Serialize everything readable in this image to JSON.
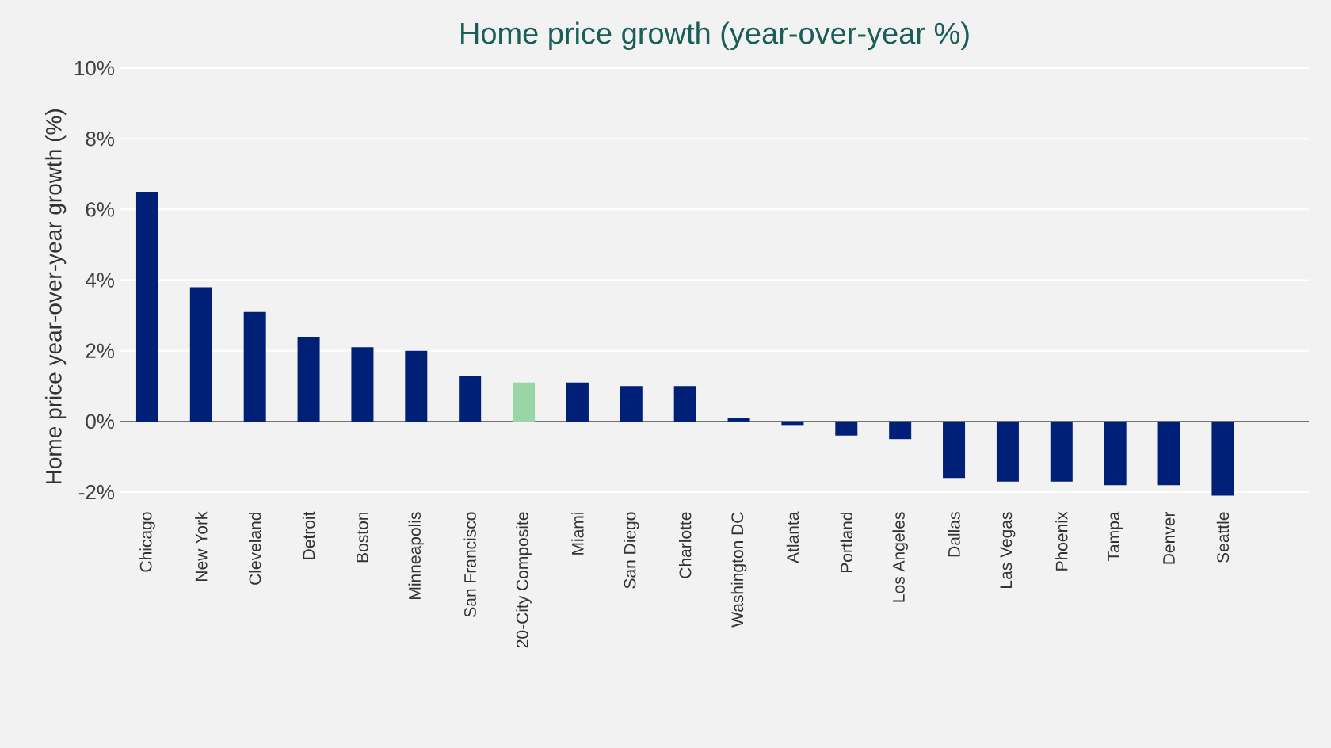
{
  "chart_data": {
    "type": "bar",
    "title": "Home price growth (year-over-year %)",
    "ylabel": "Home price year-over-year growth  (%)",
    "categories": [
      "Chicago",
      "New York",
      "Cleveland",
      "Detroit",
      "Boston",
      "Minneapolis",
      "San Francisco",
      "20-City Composite",
      "Miami",
      "San Diego",
      "Charlotte",
      "Washington DC",
      "Atlanta",
      "Portland",
      "Los Angeles",
      "Dallas",
      "Las Vegas",
      "Phoenix",
      "Tampa",
      "Denver",
      "Seattle"
    ],
    "values": [
      6.5,
      3.8,
      3.1,
      2.4,
      2.1,
      2.0,
      1.3,
      1.1,
      1.1,
      1.0,
      1.0,
      0.1,
      -0.1,
      -0.4,
      -0.5,
      -1.6,
      -1.7,
      -1.7,
      -1.8,
      -1.8,
      -2.1
    ],
    "colors": [
      "#001f77",
      "#001f77",
      "#001f77",
      "#001f77",
      "#001f77",
      "#001f77",
      "#001f77",
      "#99d5a6",
      "#001f77",
      "#001f77",
      "#001f77",
      "#001f77",
      "#001f77",
      "#001f77",
      "#001f77",
      "#001f77",
      "#001f77",
      "#001f77",
      "#001f77",
      "#001f77",
      "#001f77"
    ],
    "ylim": [
      -2.2,
      10
    ],
    "yticks": [
      {
        "value": -2,
        "label": "-2%"
      },
      {
        "value": 0,
        "label": "0%"
      },
      {
        "value": 2,
        "label": "2%"
      },
      {
        "value": 4,
        "label": "4%"
      },
      {
        "value": 6,
        "label": "6%"
      },
      {
        "value": 8,
        "label": "8%"
      },
      {
        "value": 10,
        "label": "10%"
      }
    ],
    "grid": "y"
  }
}
